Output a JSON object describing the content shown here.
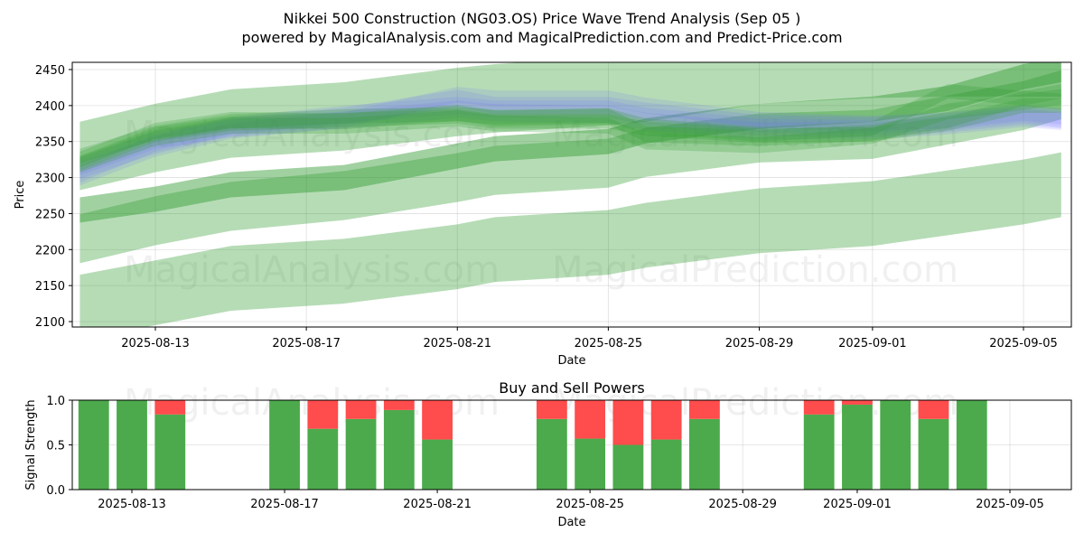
{
  "figure": {
    "title_line1": "Nikkei 500 Construction (NG03.OS) Price Wave Trend Analysis (Sep 05 )",
    "title_line2": "powered by MagicalAnalysis.com and MagicalPrediction.com and Predict-Price.com",
    "watermarks": [
      "MagicalAnalysis.com",
      "MagicalPrediction.com"
    ]
  },
  "chart_data": [
    {
      "type": "area",
      "title": "",
      "xlabel": "Date",
      "ylabel": "Price",
      "x_tick_labels": [
        "2025-08-13",
        "2025-08-17",
        "2025-08-21",
        "2025-08-25",
        "2025-08-29",
        "2025-09-01",
        "2025-09-05"
      ],
      "y_ticks": [
        2100,
        2150,
        2200,
        2250,
        2300,
        2350,
        2400,
        2450
      ],
      "ylim": [
        2090,
        2460
      ],
      "grid": true,
      "x_dates": [
        "2025-08-11",
        "2025-08-13",
        "2025-08-15",
        "2025-08-18",
        "2025-08-21",
        "2025-08-22",
        "2025-08-25",
        "2025-08-26",
        "2025-08-29",
        "2025-09-01",
        "2025-09-03",
        "2025-09-05",
        "2025-09-06"
      ],
      "green_bands": [
        {
          "center": [
            2255,
            2270,
            2290,
            2300,
            2330,
            2340,
            2350,
            2365,
            2385,
            2395,
            2410,
            2440,
            2450
          ],
          "width": 35,
          "opacity": 0.45
        },
        {
          "center": [
            2215,
            2240,
            2260,
            2275,
            2300,
            2310,
            2320,
            2335,
            2355,
            2360,
            2380,
            2400,
            2415
          ],
          "width": 68,
          "opacity": 0.35
        },
        {
          "center": [
            2120,
            2140,
            2160,
            2170,
            2190,
            2200,
            2210,
            2220,
            2240,
            2250,
            2265,
            2280,
            2290
          ],
          "width": 90,
          "opacity": 0.35
        },
        {
          "center": [
            2330,
            2355,
            2375,
            2385,
            2405,
            2410,
            2420,
            2425,
            2450,
            2458,
            2460,
            2460,
            2460
          ],
          "width": 95,
          "opacity": 0.35
        }
      ],
      "blue_bands": [
        {
          "center": [
            2300,
            2340,
            2365,
            2380,
            2415,
            2410,
            2410,
            2400,
            2380,
            2375,
            2380,
            2390,
            2385
          ],
          "width": 22,
          "opacity": 0.15
        },
        {
          "center": [
            2310,
            2345,
            2370,
            2385,
            2410,
            2400,
            2400,
            2392,
            2375,
            2372,
            2378,
            2388,
            2382
          ],
          "width": 24,
          "opacity": 0.15
        },
        {
          "center": [
            2305,
            2348,
            2372,
            2388,
            2400,
            2395,
            2395,
            2385,
            2370,
            2368,
            2375,
            2385,
            2380
          ],
          "width": 24,
          "opacity": 0.15
        },
        {
          "center": [
            2315,
            2352,
            2368,
            2380,
            2395,
            2390,
            2388,
            2378,
            2365,
            2365,
            2372,
            2382,
            2378
          ],
          "width": 24,
          "opacity": 0.15
        }
      ],
      "green_thin_bands": [
        {
          "center": [
            2320,
            2360,
            2375,
            2380,
            2385,
            2378,
            2378,
            2368,
            2358,
            2360,
            2375,
            2400,
            2400
          ],
          "width": 20,
          "opacity": 0.25
        },
        {
          "center": [
            2325,
            2365,
            2380,
            2378,
            2390,
            2382,
            2385,
            2360,
            2355,
            2362,
            2380,
            2410,
            2405
          ],
          "width": 22,
          "opacity": 0.25
        },
        {
          "center": [
            2318,
            2355,
            2372,
            2372,
            2382,
            2375,
            2372,
            2350,
            2345,
            2358,
            2392,
            2405,
            2412
          ],
          "width": 22,
          "opacity": 0.25
        },
        {
          "center": [
            2330,
            2362,
            2378,
            2385,
            2388,
            2384,
            2386,
            2372,
            2360,
            2368,
            2420,
            2410,
            2420
          ],
          "width": 20,
          "opacity": 0.25
        }
      ]
    },
    {
      "type": "bar",
      "title": "Buy and Sell Powers",
      "xlabel": "Date",
      "ylabel": "Signal Strength",
      "x_tick_labels": [
        "2025-08-13",
        "2025-08-17",
        "2025-08-21",
        "2025-08-25",
        "2025-08-29",
        "2025-09-01",
        "2025-09-05"
      ],
      "y_ticks": [
        "0.0",
        "0.5",
        "1.0"
      ],
      "ylim": [
        0,
        1
      ],
      "grid": true,
      "colors": {
        "buy": "#4caa4c",
        "sell": "#ff4c4c"
      },
      "dates": [
        "2025-08-12",
        "2025-08-13",
        "2025-08-14",
        "2025-08-17",
        "2025-08-18",
        "2025-08-19",
        "2025-08-20",
        "2025-08-21",
        "2025-08-24",
        "2025-08-25",
        "2025-08-26",
        "2025-08-27",
        "2025-08-28",
        "2025-08-31",
        "2025-09-01",
        "2025-09-02",
        "2025-09-03",
        "2025-09-04"
      ],
      "buy": [
        1.0,
        1.0,
        0.84,
        1.0,
        0.68,
        0.79,
        0.89,
        0.56,
        0.79,
        0.57,
        0.5,
        0.56,
        0.79,
        0.84,
        0.95,
        1.0,
        0.79,
        1.0
      ],
      "sell": [
        0.0,
        0.0,
        0.16,
        0.0,
        0.32,
        0.21,
        0.11,
        0.44,
        0.21,
        0.43,
        0.5,
        0.44,
        0.21,
        0.16,
        0.05,
        0.0,
        0.21,
        0.0
      ]
    }
  ]
}
